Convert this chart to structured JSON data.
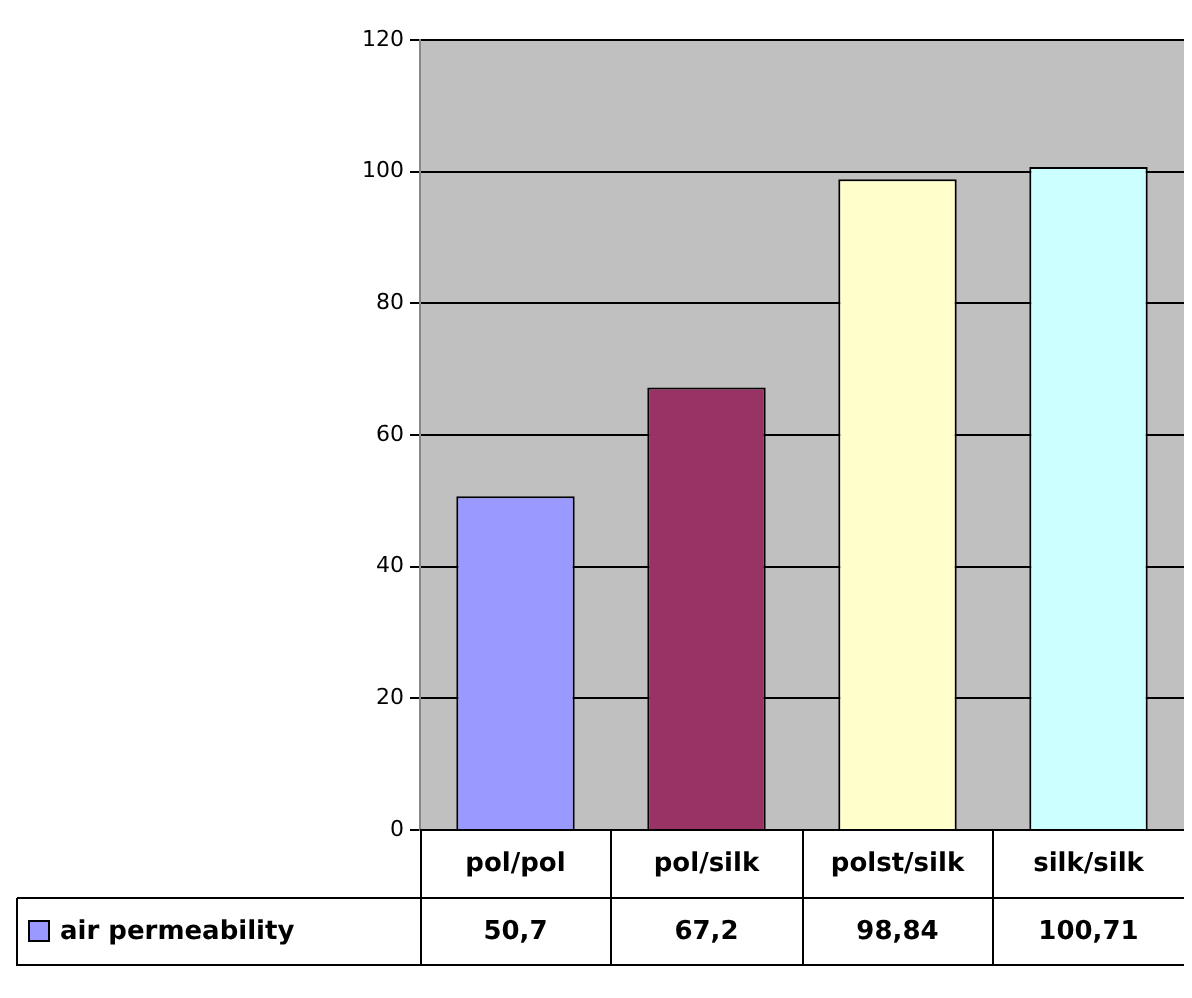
{
  "chart_data": {
    "type": "bar",
    "categories": [
      "pol/pol",
      "pol/silk",
      "polst/silk",
      "silk/silk"
    ],
    "series": [
      {
        "name": "air permeability",
        "color": "#9999ff",
        "colors": [
          "#9999ff",
          "#993366",
          "#ffffcc",
          "#ccffff"
        ],
        "values": [
          50.7,
          67.2,
          98.84,
          100.71
        ],
        "value_labels": [
          "50,7",
          "67,2",
          "98,84",
          "100,71"
        ]
      }
    ],
    "ylim": [
      0,
      120
    ],
    "yticks": [
      0,
      20,
      40,
      60,
      80,
      100,
      120
    ],
    "grid": "y",
    "legend": "bottom"
  }
}
